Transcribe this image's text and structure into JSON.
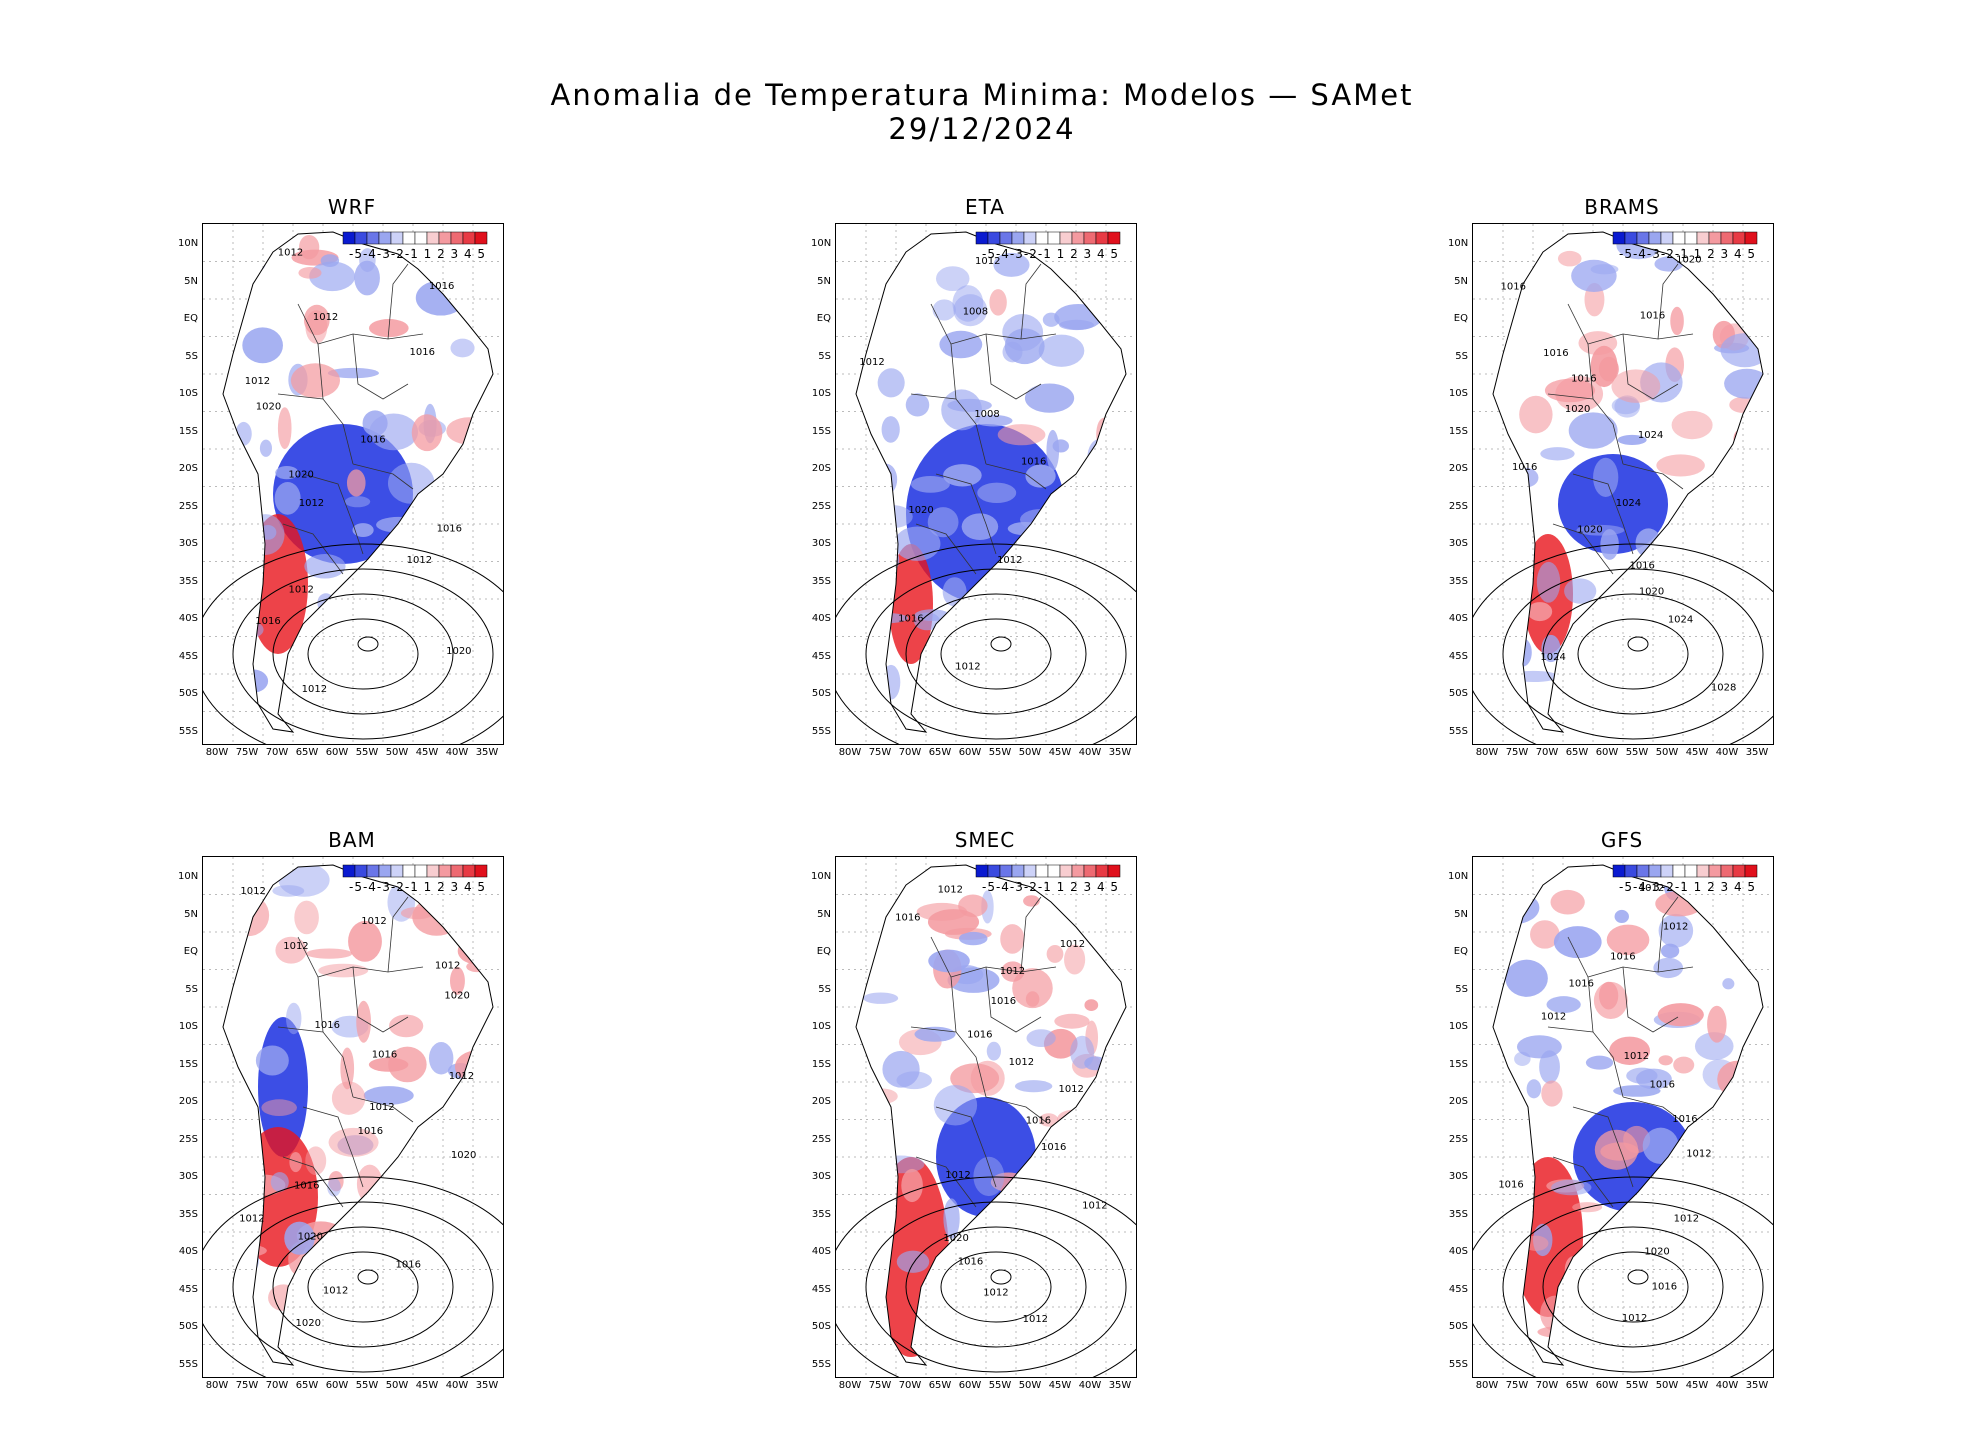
{
  "title": "Anomalia de Temperatura Minima: Modelos — SAMet",
  "date": "29/12/2024",
  "colors": {
    "cold": "#1a2fe0",
    "warm": "#e8141c",
    "neutral": "#ffffff"
  },
  "colorbar": {
    "labels": "-5-4-3-2-1 1 2 3 4 5"
  },
  "axes": {
    "y_ticks": [
      "10N",
      "5N",
      "EQ",
      "5S",
      "10S",
      "15S",
      "20S",
      "25S",
      "30S",
      "35S",
      "40S",
      "45S",
      "50S",
      "55S"
    ],
    "x_ticks": [
      "80W",
      "75W",
      "70W",
      "65W",
      "60W",
      "55W",
      "50W",
      "45W",
      "40W",
      "35W"
    ]
  },
  "panels": [
    {
      "model": "WRF",
      "isobars": [
        "1012",
        "1016",
        "1012",
        "1016",
        "1012",
        "1020",
        "1016",
        "1020",
        "1012",
        "1016",
        "1012",
        "1012",
        "1016",
        "1020",
        "1012"
      ]
    },
    {
      "model": "ETA",
      "isobars": [
        "1012",
        "1008",
        "1012",
        "1008",
        "1016",
        "1020",
        "1012",
        "1016",
        "1012"
      ]
    },
    {
      "model": "BRAMS",
      "isobars": [
        "1020",
        "1016",
        "1016",
        "1016",
        "1016",
        "1020",
        "1024",
        "1016",
        "1024",
        "1020",
        "1016",
        "1020",
        "1024",
        "1024",
        "1028"
      ]
    },
    {
      "model": "BAM",
      "isobars": [
        "1012",
        "1012",
        "1012",
        "1012",
        "1020",
        "1016",
        "1016",
        "1012",
        "1012",
        "1016",
        "1020",
        "1016",
        "1012",
        "1020",
        "1016",
        "1012",
        "1020"
      ]
    },
    {
      "model": "SMEC",
      "isobars": [
        "1012",
        "1016",
        "1012",
        "1012",
        "1016",
        "1016",
        "1012",
        "1012",
        "1016",
        "1016",
        "1012",
        "1012",
        "1020",
        "1016",
        "1012",
        "1012"
      ]
    },
    {
      "model": "GFS",
      "isobars": [
        "1012",
        "1012",
        "1016",
        "1016",
        "1012",
        "1012",
        "1016",
        "1016",
        "1012",
        "1016",
        "1012",
        "1020",
        "1016",
        "1012"
      ]
    }
  ]
}
